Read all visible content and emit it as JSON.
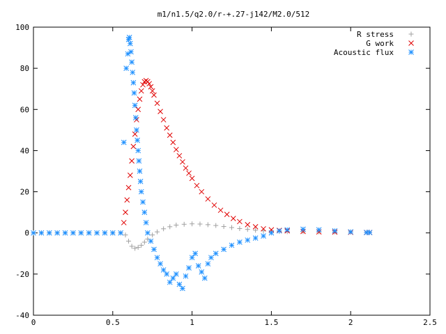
{
  "chart_data": {
    "type": "scatter",
    "title": "m1/n1.5/q2.0/r-+.27-j142/M2.0/512",
    "xlabel": "",
    "ylabel": "",
    "xlim": [
      0,
      2.5
    ],
    "ylim": [
      -40,
      100
    ],
    "xticks": [
      0,
      0.5,
      1,
      1.5,
      2,
      2.5
    ],
    "xtick_labels": [
      "0",
      "0.5",
      "1",
      "1.5",
      "2",
      "2.5"
    ],
    "yticks": [
      -40,
      -20,
      0,
      20,
      40,
      60,
      80,
      100
    ],
    "ytick_labels": [
      "-40",
      "-20",
      "0",
      "20",
      "40",
      "60",
      "80",
      "100"
    ],
    "legend_position": "top-right",
    "grid": false,
    "series": [
      {
        "name": "R stress",
        "marker": "plus",
        "color": "#a0a0a0",
        "x": [
          0,
          0.05,
          0.1,
          0.15,
          0.2,
          0.25,
          0.3,
          0.35,
          0.4,
          0.45,
          0.5,
          0.55,
          0.58,
          0.6,
          0.62,
          0.64,
          0.66,
          0.68,
          0.7,
          0.72,
          0.75,
          0.78,
          0.82,
          0.86,
          0.9,
          0.95,
          1.0,
          1.05,
          1.1,
          1.15,
          1.2,
          1.25,
          1.3,
          1.35,
          1.4,
          1.45,
          1.5,
          1.55,
          1.6,
          1.7,
          1.8,
          1.9,
          2.0,
          2.1,
          2.12
        ],
        "y": [
          0,
          0,
          0,
          0,
          0,
          0,
          0,
          0,
          0,
          0,
          0,
          0,
          -1,
          -4,
          -6.5,
          -7.5,
          -7,
          -6,
          -4.5,
          -3,
          -1,
          0.5,
          2,
          3,
          3.8,
          4.2,
          4.4,
          4.3,
          4.0,
          3.6,
          3.1,
          2.6,
          2.1,
          1.7,
          1.3,
          1.0,
          0.8,
          0.7,
          0.6,
          0.6,
          0.5,
          0.5,
          0.4,
          0.3,
          0.3
        ]
      },
      {
        "name": "G work",
        "marker": "cross",
        "color": "#e00000",
        "x": [
          0.57,
          0.58,
          0.59,
          0.6,
          0.61,
          0.62,
          0.63,
          0.64,
          0.65,
          0.66,
          0.67,
          0.68,
          0.69,
          0.7,
          0.71,
          0.72,
          0.73,
          0.74,
          0.75,
          0.76,
          0.78,
          0.8,
          0.82,
          0.84,
          0.86,
          0.88,
          0.9,
          0.92,
          0.94,
          0.96,
          0.98,
          1.0,
          1.03,
          1.06,
          1.1,
          1.14,
          1.18,
          1.22,
          1.26,
          1.3,
          1.35,
          1.4,
          1.45,
          1.5,
          1.55,
          1.6,
          1.7,
          1.8,
          1.9,
          2.0,
          2.1,
          2.12
        ],
        "y": [
          5,
          10,
          16,
          22,
          28,
          35,
          42,
          48,
          55,
          60,
          65,
          69,
          72,
          73.5,
          74,
          73.5,
          72.5,
          71,
          69,
          67,
          63,
          59,
          55,
          51,
          47.5,
          44,
          40.5,
          37.5,
          34.5,
          31.5,
          29,
          26.5,
          23,
          20,
          16.5,
          13.5,
          11,
          9,
          7,
          5.5,
          4,
          3,
          2,
          1.5,
          1.2,
          1,
          0.7,
          0.5,
          0.4,
          0.3,
          0.2,
          0.2
        ]
      },
      {
        "name": "Acoustic flux",
        "marker": "star",
        "color": "#1e90ff",
        "x": [
          0,
          0.05,
          0.1,
          0.15,
          0.2,
          0.25,
          0.3,
          0.35,
          0.4,
          0.45,
          0.5,
          0.55,
          0.57,
          0.585,
          0.595,
          0.6,
          0.605,
          0.61,
          0.615,
          0.62,
          0.625,
          0.63,
          0.635,
          0.64,
          0.645,
          0.65,
          0.655,
          0.66,
          0.665,
          0.67,
          0.675,
          0.68,
          0.69,
          0.7,
          0.71,
          0.72,
          0.74,
          0.76,
          0.78,
          0.8,
          0.82,
          0.84,
          0.86,
          0.88,
          0.9,
          0.92,
          0.94,
          0.96,
          0.98,
          1.0,
          1.02,
          1.04,
          1.06,
          1.08,
          1.1,
          1.12,
          1.15,
          1.2,
          1.25,
          1.3,
          1.35,
          1.4,
          1.45,
          1.5,
          1.55,
          1.6,
          1.7,
          1.8,
          1.9,
          2.0,
          2.1,
          2.12
        ],
        "y": [
          0,
          0,
          0,
          0,
          0,
          0,
          0,
          0,
          0,
          0,
          0,
          0,
          44,
          80,
          87,
          94,
          95,
          92,
          88,
          83,
          78,
          73,
          68,
          62,
          56,
          50,
          45,
          40,
          35,
          30,
          25,
          20,
          15,
          10,
          5,
          0,
          -4,
          -8,
          -12,
          -15,
          -18,
          -20,
          -24,
          -22,
          -20,
          -25,
          -27,
          -21,
          -17,
          -12,
          -10,
          -16,
          -19,
          -22,
          -15,
          -12,
          -10,
          -8,
          -6,
          -4.5,
          -3.5,
          -2.5,
          -1.5,
          0,
          1,
          1.5,
          1.8,
          1.5,
          1,
          0.5,
          0.2,
          0.2
        ]
      }
    ]
  }
}
